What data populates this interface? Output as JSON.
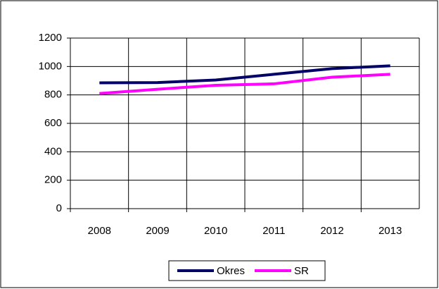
{
  "chart_data": {
    "type": "line",
    "categories": [
      "2008",
      "2009",
      "2010",
      "2011",
      "2012",
      "2013"
    ],
    "series": [
      {
        "name": "Okres",
        "color": "#000066",
        "values": [
          885,
          887,
          905,
          945,
          985,
          1005
        ]
      },
      {
        "name": "SR",
        "color": "#ff00ff",
        "values": [
          810,
          840,
          868,
          878,
          925,
          945
        ]
      }
    ],
    "ylim": [
      0,
      1200
    ],
    "yticks": [
      0,
      200,
      400,
      600,
      800,
      1000,
      1200
    ],
    "grid": true,
    "legend": "bottom"
  }
}
